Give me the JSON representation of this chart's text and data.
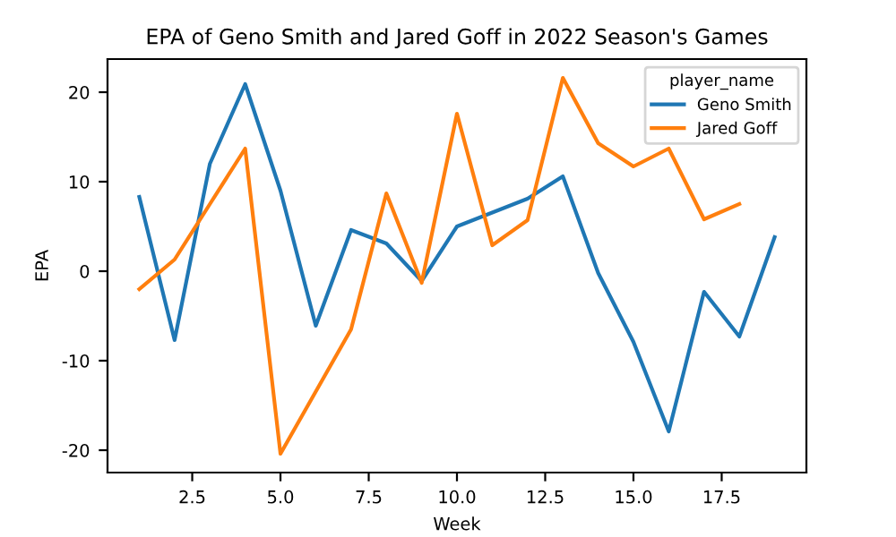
{
  "chart_data": {
    "type": "line",
    "title": "EPA of Geno Smith and Jared Goff in 2022 Season's Games",
    "xlabel": "Week",
    "ylabel": "EPA",
    "legend_title": "player_name",
    "legend": "top right",
    "grid": false,
    "xlim": [
      0.1,
      19.9
    ],
    "xticks": [
      2.5,
      {
        "value": 5,
        "label": "5.0"
      },
      7.5,
      {
        "value": 10,
        "label": "10.0"
      },
      12.5,
      {
        "value": 15,
        "label": "15.0"
      },
      17.5
    ],
    "ylim": [
      -22.5,
      23.7
    ],
    "yticks": [
      -20,
      -10,
      0,
      10,
      20
    ],
    "series": [
      {
        "name": "Geno Smith",
        "color": "#1f77b4",
        "x": [
          1,
          2,
          3,
          4,
          5,
          6,
          7,
          8,
          9,
          10,
          12,
          13,
          14,
          15,
          16,
          17,
          18,
          19
        ],
        "values": [
          8.3,
          -7.7,
          12,
          20.9,
          9,
          -6.1,
          4.6,
          3.1,
          -1.1,
          5,
          8.1,
          10.6,
          -0.2,
          -7.9,
          -17.9,
          -2.3,
          -7.3,
          3.8
        ]
      },
      {
        "name": "Jared Goff",
        "color": "#ff7f0e",
        "x": [
          1,
          2,
          3,
          4,
          5,
          7,
          8,
          9,
          10,
          11,
          12,
          13,
          14,
          15,
          16,
          17,
          18
        ],
        "values": [
          -2,
          1.3,
          7.5,
          13.7,
          -20.4,
          -6.5,
          8.7,
          -1.3,
          17.6,
          2.9,
          5.7,
          21.6,
          14.3,
          11.7,
          13.7,
          5.8,
          7.5
        ]
      }
    ]
  }
}
